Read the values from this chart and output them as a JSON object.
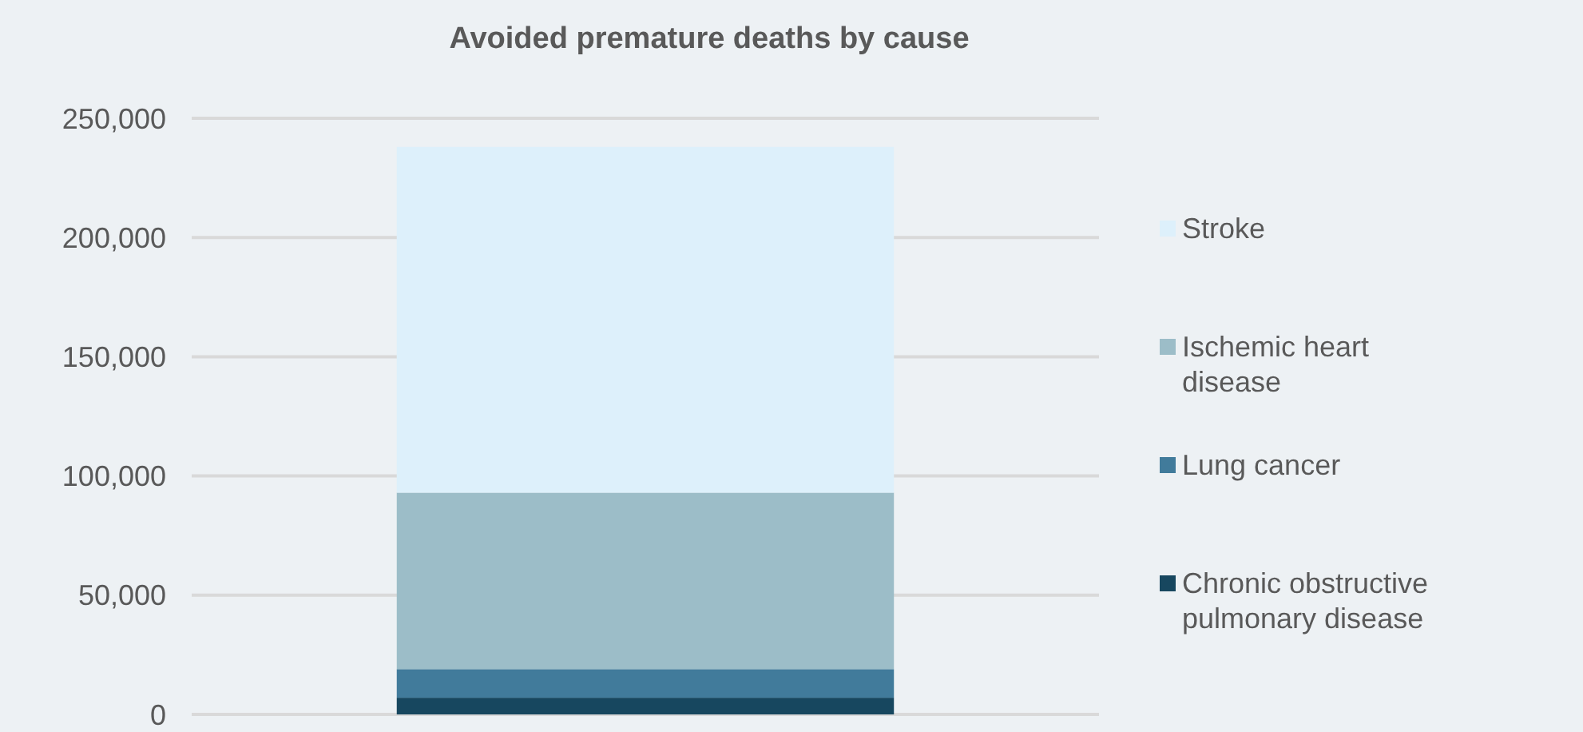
{
  "chart_data": {
    "type": "bar",
    "title": "Avoided premature deaths by cause",
    "categories": [
      null
    ],
    "stacked": true,
    "series": [
      {
        "name": "Chronic obstructive pulmonary disease",
        "color": "#17475f",
        "values": [
          7000
        ]
      },
      {
        "name": "Lung cancer",
        "color": "#417b9b",
        "values": [
          12000
        ]
      },
      {
        "name": "Ischemic heart disease",
        "color": "#9cbdc8",
        "values": [
          74000
        ]
      },
      {
        "name": "Stroke",
        "color": "#ddf0fb",
        "values": [
          145000
        ]
      }
    ],
    "ylim": [
      0,
      250000
    ],
    "yticks": [
      {
        "value": 0,
        "label": "0"
      },
      {
        "value": 50000,
        "label": "50,000"
      },
      {
        "value": 100000,
        "label": "100,000"
      },
      {
        "value": 150000,
        "label": "150,000"
      },
      {
        "value": 200000,
        "label": "200,000"
      },
      {
        "value": 250000,
        "label": "250,000"
      }
    ],
    "grid": "y",
    "legend": "right"
  }
}
